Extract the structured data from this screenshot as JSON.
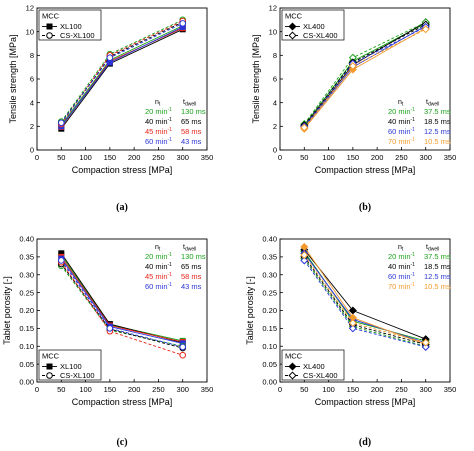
{
  "colors": {
    "black": "#000000",
    "green": "#1aa31a",
    "red": "#e8261a",
    "blue": "#2a35d8",
    "orange": "#f39a2c"
  },
  "chart_data": [
    {
      "id": "a",
      "panel_label": "(a)",
      "type": "line",
      "xlabel": "Compaction stress [MPa]",
      "ylabel": "Tensile strength [MPa]",
      "xlim": [
        0,
        350
      ],
      "ylim": [
        0,
        12
      ],
      "xticks": [
        "0",
        "50",
        "100",
        "150",
        "200",
        "250",
        "300",
        "350"
      ],
      "yticks": [
        "0",
        "2",
        "4",
        "6",
        "8",
        "10",
        "12"
      ],
      "legend": {
        "placement": "top-left",
        "title": "MCC",
        "entries": [
          {
            "label": "XL100",
            "style": "solid",
            "marker": "square-filled"
          },
          {
            "label": "CS-XL100",
            "style": "dashed",
            "marker": "circle-open"
          }
        ]
      },
      "rate_table": {
        "placement": "bottom-right",
        "header_nt": "n",
        "header_nt_sub": "t",
        "header_dwell": "t",
        "header_dwell_sub": "dwell",
        "rows": [
          {
            "speed": "20 min",
            "sup": "-1",
            "dwell": "130 ms",
            "color": "#1aa31a"
          },
          {
            "speed": "40 min",
            "sup": "-1",
            "dwell": "65 ms",
            "color": "#000000"
          },
          {
            "speed": "45 min",
            "sup": "-1",
            "dwell": "58 ms",
            "color": "#e8261a"
          },
          {
            "speed": "60 min",
            "sup": "-1",
            "dwell": "43 ms",
            "color": "#2a35d8"
          }
        ]
      },
      "series": [
        {
          "line": "solid",
          "marker": "square",
          "color": "#1aa31a",
          "x": [
            50,
            150,
            300
          ],
          "y": [
            2.1,
            7.6,
            10.5
          ]
        },
        {
          "line": "solid",
          "marker": "square",
          "color": "#000000",
          "x": [
            50,
            150,
            300
          ],
          "y": [
            1.8,
            7.3,
            10.2
          ]
        },
        {
          "line": "solid",
          "marker": "square",
          "color": "#e8261a",
          "x": [
            50,
            150,
            300
          ],
          "y": [
            1.95,
            7.5,
            10.3
          ]
        },
        {
          "line": "solid",
          "marker": "square",
          "color": "#2a35d8",
          "x": [
            50,
            150,
            300
          ],
          "y": [
            2.0,
            7.4,
            10.4
          ]
        },
        {
          "line": "dashed",
          "marker": "circle",
          "color": "#1aa31a",
          "x": [
            50,
            150,
            300
          ],
          "y": [
            2.4,
            8.1,
            11.0
          ]
        },
        {
          "line": "dashed",
          "marker": "circle",
          "color": "#000000",
          "x": [
            50,
            150,
            300
          ],
          "y": [
            2.3,
            7.9,
            10.8
          ]
        },
        {
          "line": "dashed",
          "marker": "circle",
          "color": "#e8261a",
          "x": [
            50,
            150,
            300
          ],
          "y": [
            2.2,
            8.0,
            10.9
          ]
        },
        {
          "line": "dashed",
          "marker": "circle",
          "color": "#2a35d8",
          "x": [
            50,
            150,
            300
          ],
          "y": [
            2.3,
            7.8,
            10.7
          ]
        }
      ]
    },
    {
      "id": "b",
      "panel_label": "(b)",
      "type": "line",
      "xlabel": "Compaction stress [MPa]",
      "ylabel": "Tensile strength [MPa]",
      "xlim": [
        0,
        350
      ],
      "ylim": [
        0,
        12
      ],
      "xticks": [
        "0",
        "50",
        "100",
        "150",
        "200",
        "250",
        "300",
        "350"
      ],
      "yticks": [
        "0",
        "2",
        "4",
        "6",
        "8",
        "10",
        "12"
      ],
      "legend": {
        "placement": "top-left",
        "title": "MCC",
        "entries": [
          {
            "label": "XL400",
            "style": "solid",
            "marker": "diamond-filled"
          },
          {
            "label": "CS-XL400",
            "style": "dashed",
            "marker": "diamond-open"
          }
        ]
      },
      "rate_table": {
        "placement": "bottom-right",
        "header_nt": "n",
        "header_nt_sub": "t",
        "header_dwell": "t",
        "header_dwell_sub": "dwell",
        "rows": [
          {
            "speed": "20 min",
            "sup": "-1",
            "dwell": "37.5 ms",
            "color": "#1aa31a"
          },
          {
            "speed": "40 min",
            "sup": "-1",
            "dwell": "18.5 ms",
            "color": "#000000"
          },
          {
            "speed": "60 min",
            "sup": "-1",
            "dwell": "12.5 ms",
            "color": "#2a35d8"
          },
          {
            "speed": "70 min",
            "sup": "-1",
            "dwell": "10.5 ms",
            "color": "#f39a2c"
          }
        ]
      },
      "series": [
        {
          "line": "solid",
          "marker": "diamond",
          "color": "#1aa31a",
          "x": [
            50,
            150,
            300
          ],
          "y": [
            2.1,
            7.5,
            10.7
          ]
        },
        {
          "line": "solid",
          "marker": "diamond",
          "color": "#000000",
          "x": [
            50,
            150,
            300
          ],
          "y": [
            2.0,
            7.2,
            10.8
          ]
        },
        {
          "line": "solid",
          "marker": "diamond",
          "color": "#2a35d8",
          "x": [
            50,
            150,
            300
          ],
          "y": [
            1.9,
            7.0,
            10.5
          ]
        },
        {
          "line": "solid",
          "marker": "diamond",
          "color": "#f39a2c",
          "x": [
            50,
            150,
            300
          ],
          "y": [
            1.8,
            6.8,
            10.3
          ]
        },
        {
          "line": "dashed",
          "marker": "diamond",
          "color": "#1aa31a",
          "x": [
            50,
            150,
            300
          ],
          "y": [
            2.2,
            7.8,
            10.8
          ]
        },
        {
          "line": "dashed",
          "marker": "diamond",
          "color": "#000000",
          "x": [
            50,
            150,
            300
          ],
          "y": [
            2.1,
            7.4,
            10.6
          ]
        },
        {
          "line": "dashed",
          "marker": "diamond",
          "color": "#2a35d8",
          "x": [
            50,
            150,
            300
          ],
          "y": [
            2.0,
            7.3,
            10.4
          ]
        },
        {
          "line": "dashed",
          "marker": "diamond",
          "color": "#f39a2c",
          "x": [
            50,
            150,
            300
          ],
          "y": [
            1.9,
            7.1,
            10.2
          ]
        }
      ]
    },
    {
      "id": "c",
      "panel_label": "(c)",
      "type": "line",
      "xlabel": "Compaction stress [MPa]",
      "ylabel": "Tablet porosity [-]",
      "xlim": [
        0,
        350
      ],
      "ylim": [
        0,
        0.4
      ],
      "xticks": [
        "0",
        "50",
        "100",
        "150",
        "200",
        "250",
        "300",
        "350"
      ],
      "yticks": [
        "0.00",
        "0.05",
        "0.10",
        "0.15",
        "0.20",
        "0.25",
        "0.30",
        "0.35",
        "0.40"
      ],
      "legend": {
        "placement": "bottom-left",
        "title": "MCC",
        "entries": [
          {
            "label": "XL100",
            "style": "solid",
            "marker": "square-filled"
          },
          {
            "label": "CS-XL100",
            "style": "dashed",
            "marker": "circle-open"
          }
        ]
      },
      "rate_table": {
        "placement": "top-right",
        "header_nt": "n",
        "header_nt_sub": "t",
        "header_dwell": "t",
        "header_dwell_sub": "dwell",
        "rows": [
          {
            "speed": "20 min",
            "sup": "-1",
            "dwell": "130 ms",
            "color": "#1aa31a"
          },
          {
            "speed": "40 min",
            "sup": "-1",
            "dwell": "65 ms",
            "color": "#000000"
          },
          {
            "speed": "45 min",
            "sup": "-1",
            "dwell": "58 ms",
            "color": "#e8261a"
          },
          {
            "speed": "60 min",
            "sup": "-1",
            "dwell": "43 ms",
            "color": "#2a35d8"
          }
        ]
      },
      "series": [
        {
          "line": "solid",
          "marker": "square",
          "color": "#1aa31a",
          "x": [
            50,
            150,
            300
          ],
          "y": [
            0.355,
            0.16,
            0.115
          ]
        },
        {
          "line": "solid",
          "marker": "square",
          "color": "#000000",
          "x": [
            50,
            150,
            300
          ],
          "y": [
            0.36,
            0.162,
            0.11
          ]
        },
        {
          "line": "solid",
          "marker": "square",
          "color": "#e8261a",
          "x": [
            50,
            150,
            300
          ],
          "y": [
            0.35,
            0.158,
            0.112
          ]
        },
        {
          "line": "solid",
          "marker": "square",
          "color": "#2a35d8",
          "x": [
            50,
            150,
            300
          ],
          "y": [
            0.345,
            0.155,
            0.108
          ]
        },
        {
          "line": "dashed",
          "marker": "circle",
          "color": "#1aa31a",
          "x": [
            50,
            150,
            300
          ],
          "y": [
            0.325,
            0.145,
            0.1
          ]
        },
        {
          "line": "dashed",
          "marker": "circle",
          "color": "#000000",
          "x": [
            50,
            150,
            300
          ],
          "y": [
            0.33,
            0.148,
            0.095
          ]
        },
        {
          "line": "dashed",
          "marker": "circle",
          "color": "#e8261a",
          "x": [
            50,
            150,
            300
          ],
          "y": [
            0.335,
            0.142,
            0.075
          ]
        },
        {
          "line": "dashed",
          "marker": "circle",
          "color": "#2a35d8",
          "x": [
            50,
            150,
            300
          ],
          "y": [
            0.34,
            0.15,
            0.098
          ]
        }
      ]
    },
    {
      "id": "d",
      "panel_label": "(d)",
      "type": "line",
      "xlabel": "Compaction stress [MPa]",
      "ylabel": "Tablet porosity [-]",
      "xlim": [
        0,
        350
      ],
      "ylim": [
        0,
        0.4
      ],
      "xticks": [
        "0",
        "50",
        "100",
        "150",
        "200",
        "250",
        "300",
        "350"
      ],
      "yticks": [
        "0.00",
        "0.05",
        "0.10",
        "0.15",
        "0.20",
        "0.25",
        "0.30",
        "0.35",
        "0.40"
      ],
      "legend": {
        "placement": "bottom-left",
        "title": "MCC",
        "entries": [
          {
            "label": "XL400",
            "style": "solid",
            "marker": "diamond-filled"
          },
          {
            "label": "CS-XL400",
            "style": "dashed",
            "marker": "diamond-open"
          }
        ]
      },
      "rate_table": {
        "placement": "top-right",
        "header_nt": "n",
        "header_nt_sub": "t",
        "header_dwell": "t",
        "header_dwell_sub": "dwell",
        "rows": [
          {
            "speed": "20 min",
            "sup": "-1",
            "dwell": "37.5 ms",
            "color": "#1aa31a"
          },
          {
            "speed": "40 min",
            "sup": "-1",
            "dwell": "18.5 ms",
            "color": "#000000"
          },
          {
            "speed": "60 min",
            "sup": "-1",
            "dwell": "12.5 ms",
            "color": "#2a35d8"
          },
          {
            "speed": "70 min",
            "sup": "-1",
            "dwell": "10.5 ms",
            "color": "#f39a2c"
          }
        ]
      },
      "series": [
        {
          "line": "solid",
          "marker": "diamond",
          "color": "#1aa31a",
          "x": [
            50,
            150,
            300
          ],
          "y": [
            0.365,
            0.17,
            0.115
          ]
        },
        {
          "line": "solid",
          "marker": "diamond",
          "color": "#000000",
          "x": [
            50,
            150,
            300
          ],
          "y": [
            0.37,
            0.2,
            0.12
          ]
        },
        {
          "line": "solid",
          "marker": "diamond",
          "color": "#2a35d8",
          "x": [
            50,
            150,
            300
          ],
          "y": [
            0.36,
            0.175,
            0.11
          ]
        },
        {
          "line": "solid",
          "marker": "diamond",
          "color": "#f39a2c",
          "x": [
            50,
            150,
            300
          ],
          "y": [
            0.378,
            0.18,
            0.105
          ]
        },
        {
          "line": "dashed",
          "marker": "diamond",
          "color": "#1aa31a",
          "x": [
            50,
            150,
            300
          ],
          "y": [
            0.345,
            0.155,
            0.1
          ]
        },
        {
          "line": "dashed",
          "marker": "diamond",
          "color": "#000000",
          "x": [
            50,
            150,
            300
          ],
          "y": [
            0.35,
            0.16,
            0.105
          ]
        },
        {
          "line": "dashed",
          "marker": "diamond",
          "color": "#2a35d8",
          "x": [
            50,
            150,
            300
          ],
          "y": [
            0.34,
            0.15,
            0.098
          ]
        },
        {
          "line": "dashed",
          "marker": "diamond",
          "color": "#f39a2c",
          "x": [
            50,
            150,
            300
          ],
          "y": [
            0.355,
            0.165,
            0.11
          ]
        }
      ]
    }
  ]
}
